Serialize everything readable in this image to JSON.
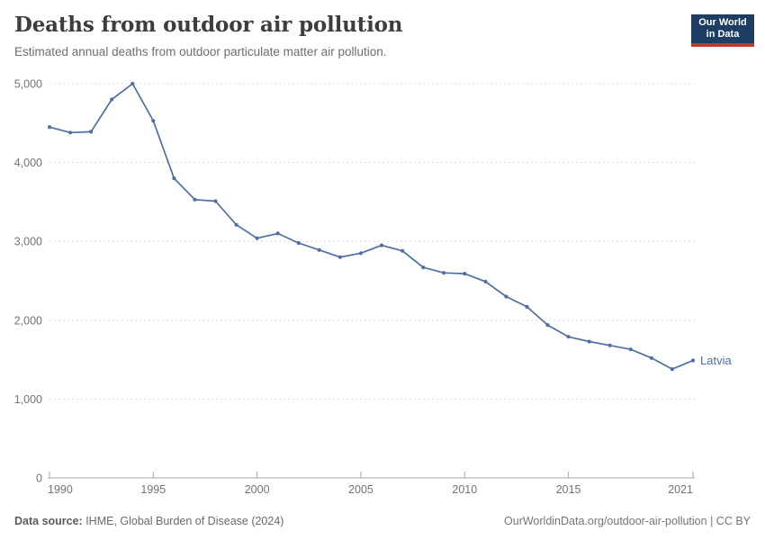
{
  "header": {
    "title": "Deaths from outdoor air pollution",
    "subtitle": "Estimated annual deaths from outdoor particulate matter air pollution."
  },
  "logo": {
    "line1": "Our World",
    "line2": "in Data",
    "bg_color": "#1d3d63",
    "accent_color": "#c0392b"
  },
  "chart_data": {
    "type": "line",
    "title": "Deaths from outdoor air pollution",
    "subtitle": "Estimated annual deaths from outdoor particulate matter air pollution.",
    "x": [
      1990,
      1991,
      1992,
      1993,
      1994,
      1995,
      1996,
      1997,
      1998,
      1999,
      2000,
      2001,
      2002,
      2003,
      2004,
      2005,
      2006,
      2007,
      2008,
      2009,
      2010,
      2011,
      2012,
      2013,
      2014,
      2015,
      2016,
      2017,
      2018,
      2019,
      2020,
      2021
    ],
    "series": [
      {
        "name": "Latvia",
        "color": "#4e6fa3",
        "values": [
          4450,
          4380,
          4390,
          4800,
          5000,
          4530,
          3800,
          3530,
          3510,
          3210,
          3040,
          3100,
          2980,
          2890,
          2800,
          2850,
          2950,
          2880,
          2670,
          2600,
          2590,
          2490,
          2300,
          2170,
          1940,
          1790,
          1730,
          1680,
          1630,
          1520,
          1380,
          1490
        ]
      }
    ],
    "xlabel": "",
    "ylabel": "",
    "xlim": [
      1990,
      2021
    ],
    "ylim": [
      0,
      5000
    ],
    "x_ticks": [
      1990,
      1995,
      2000,
      2005,
      2010,
      2015,
      2021
    ],
    "y_ticks": [
      0,
      1000,
      2000,
      3000,
      4000,
      5000
    ],
    "grid": "horizontal-dashed",
    "grid_color": "#dcdcdc",
    "axis_color": "#a8a8a8",
    "tick_label_color": "#737373",
    "legend_position": "end-of-line-label"
  },
  "footer": {
    "data_source_label": "Data source:",
    "data_source_value": " IHME, Global Burden of Disease (2024)",
    "url": "OurWorldinData.org/outdoor-air-pollution",
    "divider": " | ",
    "license": "CC BY"
  }
}
